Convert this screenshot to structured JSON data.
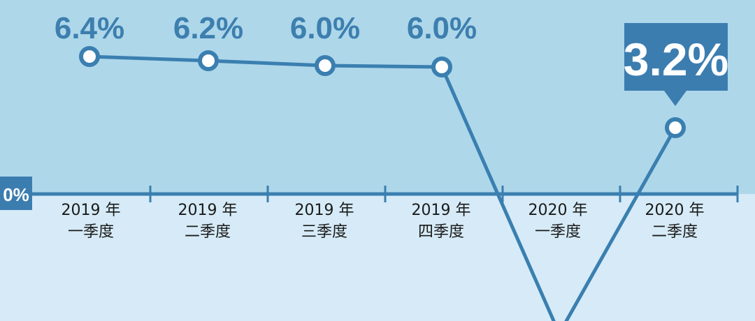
{
  "chart_data": {
    "type": "line",
    "categories": [
      [
        "2019 年",
        "一季度"
      ],
      [
        "2019 年",
        "二季度"
      ],
      [
        "2019 年",
        "三季度"
      ],
      [
        "2019 年",
        "四季度"
      ],
      [
        "2020 年",
        "一季度"
      ],
      [
        "2020 年",
        "二季度"
      ]
    ],
    "values": [
      6.4,
      6.2,
      6.0,
      6.0,
      -6.8,
      3.2
    ],
    "value_labels": [
      "6.4%",
      "6.2%",
      "6.0%",
      "6.0%",
      "",
      "3.2%"
    ],
    "zero_label": "0%",
    "highlight_index": 5,
    "title": "",
    "xlabel": "",
    "ylabel": "",
    "grid": false,
    "colors": {
      "upper_bg": "#aed7ea",
      "lower_bg": "#d6ebf7",
      "line": "#3a7fb0",
      "axis": "#3a7fb0",
      "callout": "#3c7db0"
    }
  }
}
